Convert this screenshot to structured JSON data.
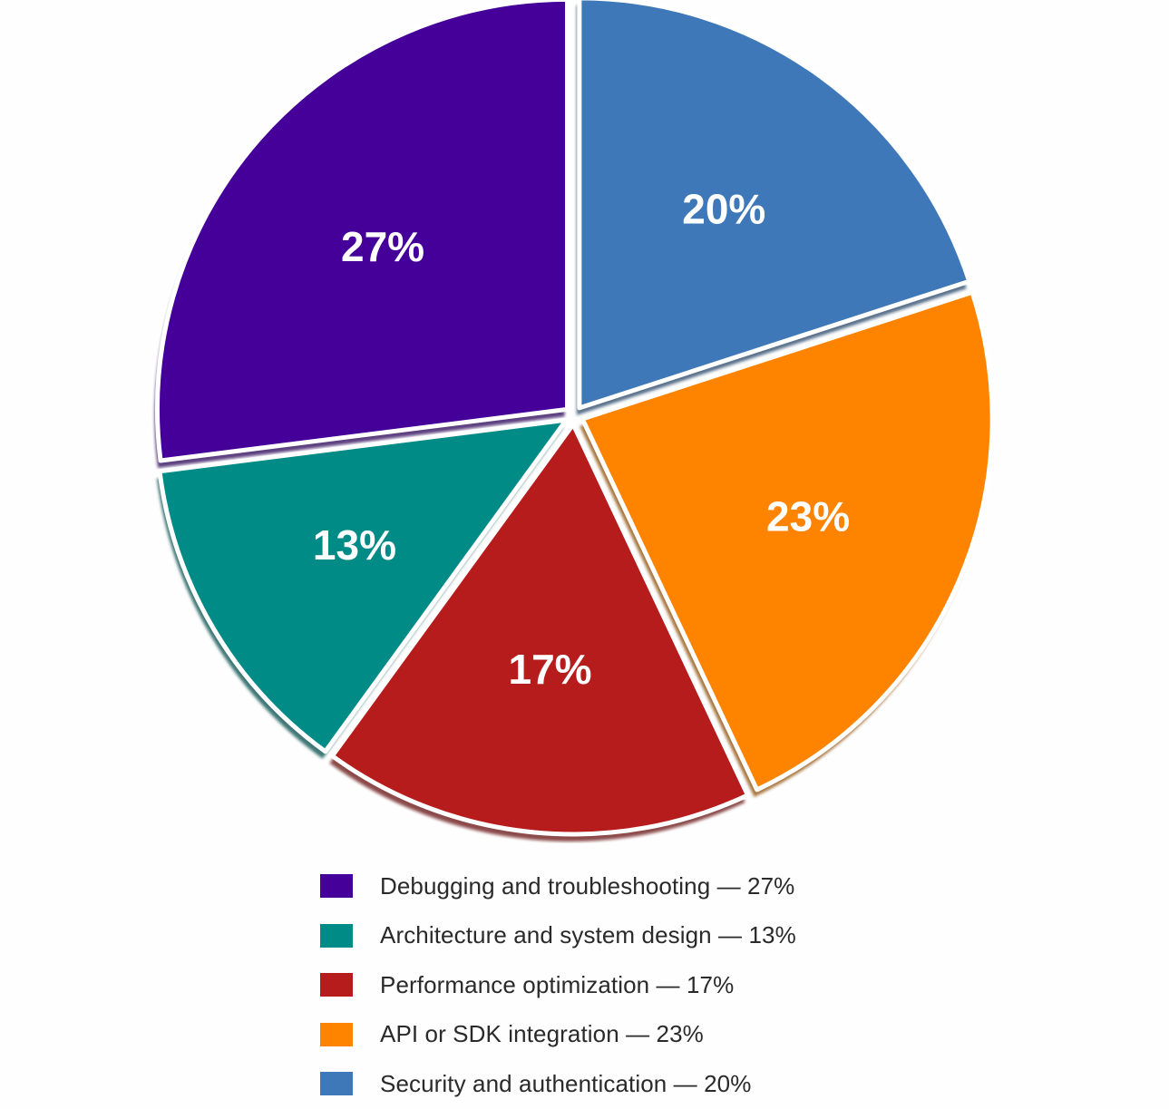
{
  "chart_data": {
    "type": "pie",
    "title": "",
    "slices": [
      {
        "label": "Debugging and troubleshooting",
        "value": 27,
        "display": "27%",
        "legend": "Debugging and troubleshooting — 27%",
        "color": "#450099"
      },
      {
        "label": "Architecture and system design",
        "value": 13,
        "display": "13%",
        "legend": "Architecture and system design — 13%",
        "color": "#008b87"
      },
      {
        "label": "Performance optimization",
        "value": 17,
        "display": "17%",
        "legend": "Performance optimization — 17%",
        "color": "#b71c1c"
      },
      {
        "label": "API or SDK integration",
        "value": 23,
        "display": "23%",
        "legend": "API or SDK integration — 23%",
        "color": "#fe8400"
      },
      {
        "label": "Security and authentication",
        "value": 20,
        "display": "20%",
        "legend": "Security and authentication — 20%",
        "color": "#3f78b8"
      }
    ],
    "direction": "counterclockwise",
    "start": "top",
    "legend_position": "bottom"
  }
}
